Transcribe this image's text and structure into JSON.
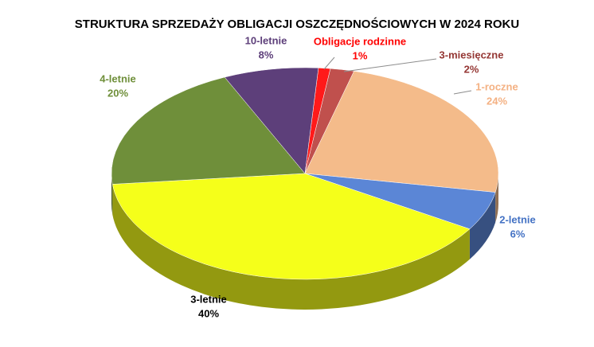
{
  "chart_data": {
    "type": "pie3d",
    "title": "STRUKTURA SPRZEDAŻY OBLIGACJI OSZCZĘDNOŚCIOWYCH W 2024 ROKU",
    "categories": [
      "Obligacje rodzinne",
      "3-miesięczne",
      "1-roczne",
      "2-letnie",
      "3-letnie",
      "4-letnie",
      "10-letnie"
    ],
    "values": [
      1,
      2,
      24,
      6,
      40,
      20,
      8
    ],
    "value_labels": [
      "1%",
      "2%",
      "24%",
      "6%",
      "40%",
      "20%",
      "8%"
    ],
    "colors": [
      "#ff1a1a",
      "#c0504d",
      "#f4bb8a",
      "#5b86d6",
      "#f5ff1a",
      "#6f8f3a",
      "#5d3f7a"
    ],
    "label_colors": [
      "#ff0000",
      "#953734",
      "#f4b183",
      "#4472c4",
      "#000000",
      "#6f8f3a",
      "#5d3f7a"
    ]
  }
}
